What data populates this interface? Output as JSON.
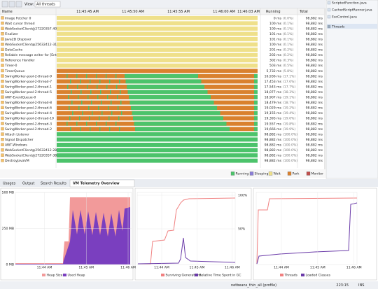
{
  "toolbar": {
    "view_label": "View:",
    "view_value": "All threads"
  },
  "columns": {
    "name": "Name",
    "times": [
      "11:45:45 AM",
      "11:45:50 AM",
      "11:45:55 AM",
      "11:46:00 AM",
      "11:46:03 AM"
    ],
    "running": "Running",
    "total": "Total"
  },
  "threads": [
    {
      "name": "Image Fetcher 0",
      "running": "0 ms",
      "percent": "(0.0%)",
      "total": "98,882 ms"
    },
    {
      "name": "Wait cursor thread",
      "running": "100 ms",
      "percent": "(0.1%)",
      "total": "98,882 ms"
    },
    {
      "name": "WebSocketClient@27220357-40",
      "running": "100 ms",
      "percent": "(0.1%)",
      "total": "98,882 ms"
    },
    {
      "name": "Finalizer",
      "running": "101 ms",
      "percent": "(0.1%)",
      "total": "98,882 ms"
    },
    {
      "name": "Java2D Disposer",
      "running": "101 ms",
      "percent": "(0.1%)",
      "total": "98,882 ms"
    },
    {
      "name": "WebSocketClient@25632412-31",
      "running": "100 ms",
      "percent": "(0.1%)",
      "total": "98,882 ms"
    },
    {
      "name": "DataCache",
      "running": "201 ms",
      "percent": "(0.2%)",
      "total": "98,882 ms"
    },
    {
      "name": "Reliable message writer for [Ent",
      "running": "202 ms",
      "percent": "(0.2%)",
      "total": "98,882 ms"
    },
    {
      "name": "Reference Handler",
      "running": "302 ms",
      "percent": "(0.3%)",
      "total": "98,882 ms"
    },
    {
      "name": "Timer-0",
      "running": "503 ms",
      "percent": "(0.5%)",
      "total": "98,882 ms"
    },
    {
      "name": "TimerQueue",
      "running": "5,732 ms",
      "percent": "(5.8%)",
      "total": "98,882 ms"
    },
    {
      "name": "SwingWorker-pool-2-thread-9",
      "running": "16,936 ms",
      "percent": "(17.1%)",
      "total": "98,882 ms"
    },
    {
      "name": "SwingWorker-pool-2-thread-7",
      "running": "17,453 ms",
      "percent": "(17.6%)",
      "total": "98,882 ms"
    },
    {
      "name": "SwingWorker-pool-2-thread-1",
      "running": "17,543 ms",
      "percent": "(17.7%)",
      "total": "98,882 ms"
    },
    {
      "name": "SwingWorker-pool-2-thread-5",
      "running": "18,077 ms",
      "percent": "(18.3%)",
      "total": "98,882 ms"
    },
    {
      "name": "AWT-EventQueue-0",
      "running": "18,907 ms",
      "percent": "(19.1%)",
      "total": "98,882 ms"
    },
    {
      "name": "SwingWorker-pool-2-thread-8",
      "running": "18,479 ms",
      "percent": "(18.7%)",
      "total": "98,882 ms"
    },
    {
      "name": "SwingWorker-pool-2-thread-6",
      "running": "19,029 ms",
      "percent": "(19.2%)",
      "total": "98,882 ms"
    },
    {
      "name": "SwingWorker-pool-2-thread-4",
      "running": "19,155 ms",
      "percent": "(19.4%)",
      "total": "98,882 ms"
    },
    {
      "name": "SwingWorker-pool-2-thread-10",
      "running": "19,393 ms",
      "percent": "(19.6%)",
      "total": "98,882 ms"
    },
    {
      "name": "SwingWorker-pool-2-thread-3",
      "running": "19,557 ms",
      "percent": "(19.8%)",
      "total": "98,882 ms"
    },
    {
      "name": "SwingWorker-pool-2-thread-2",
      "running": "19,666 ms",
      "percent": "(19.9%)",
      "total": "98,882 ms"
    },
    {
      "name": "Attach Listener",
      "running": "98,882 ms",
      "percent": "(100.0%)",
      "total": "98,882 ms"
    },
    {
      "name": "Signal Dispatcher",
      "running": "98,882 ms",
      "percent": "(100.0%)",
      "total": "98,882 ms"
    },
    {
      "name": "AWT-Windows",
      "running": "98,882 ms",
      "percent": "(100.0%)",
      "total": "98,882 ms"
    },
    {
      "name": "WebSocketClient@25632412-28-s",
      "running": "98,882 ms",
      "percent": "(100.0%)",
      "total": "98,882 ms"
    },
    {
      "name": "WebSocketClient@27220357-38-s",
      "running": "98,882 ms",
      "percent": "(100.0%)",
      "total": "98,882 ms"
    },
    {
      "name": "DestroyJavaVM",
      "running": "98,882 ms",
      "percent": "(100.0%)",
      "total": "98,882 ms"
    }
  ],
  "legend": [
    "Running",
    "Sleeping",
    "Wait",
    "Park",
    "Monitor"
  ],
  "files": [
    "ScriptedFunction.java",
    "CachedScriptRunner.java",
    "EsoControl.java",
    "Threads"
  ],
  "tabs": [
    "Usages",
    "Output",
    "Search Results",
    "VM Telemetry Overview"
  ],
  "charts": [
    {
      "yticks": [
        "500 MB",
        "250 MB",
        "0 MB"
      ],
      "xticks": [
        "11:44 AM",
        "11:45 AM",
        "11:46 AM"
      ],
      "legend": [
        "Heap Size",
        "Used Heap"
      ]
    },
    {
      "yticks": [
        "100%",
        "50%"
      ],
      "xticks": [
        "11:44 AM",
        "11:45 AM",
        "11:46 AM"
      ],
      "legend": [
        "Surviving Generations",
        "Relative Time Spent in GC"
      ]
    },
    {
      "yticks": [],
      "xticks": [
        "11:44 AM",
        "11:45 AM",
        "11:46 AM"
      ],
      "legend": [
        "Threads",
        "Loaded Classes"
      ]
    }
  ],
  "status": {
    "project": "netbeans_thin_all (profile)",
    "position": "223:15",
    "mode": "INS"
  }
}
